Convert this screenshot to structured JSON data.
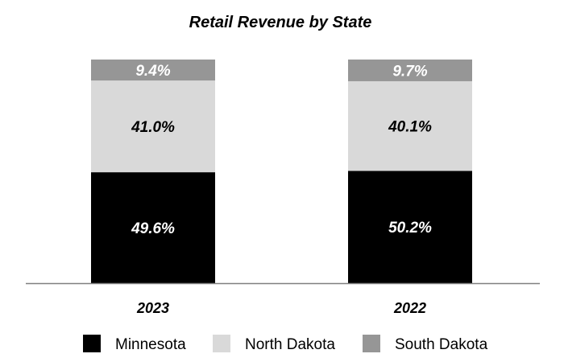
{
  "chart_data": {
    "type": "bar",
    "stacked": true,
    "title": "Retail Revenue by State",
    "xlabel": "",
    "ylabel": "",
    "categories": [
      "2023",
      "2022"
    ],
    "series": [
      {
        "name": "Minnesota",
        "values": [
          49.6,
          50.2
        ],
        "labels": [
          "49.6%",
          "50.2%"
        ],
        "color": "#000000",
        "label_color": "#ffffff"
      },
      {
        "name": "North Dakota",
        "values": [
          41.0,
          40.1
        ],
        "labels": [
          "41.0%",
          "40.1%"
        ],
        "color": "#d9d9d9",
        "label_color": "#000000"
      },
      {
        "name": "South Dakota",
        "values": [
          9.4,
          9.7
        ],
        "labels": [
          "9.4%",
          "9.7%"
        ],
        "color": "#969696",
        "label_color": "#ffffff"
      }
    ],
    "ylim": [
      0,
      100
    ],
    "grid": false,
    "legend_position": "bottom",
    "axis_color": "#808080"
  }
}
